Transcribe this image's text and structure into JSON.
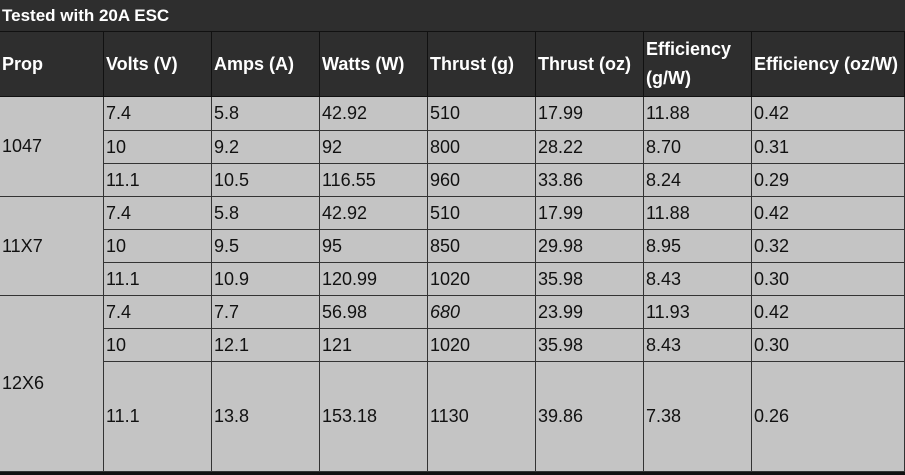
{
  "table": {
    "title": "Tested with 20A ESC",
    "headers": [
      "Prop",
      "Volts (V)",
      "Amps (A)",
      "Watts (W)",
      "Thrust (g)",
      "Thrust (oz)",
      "Efficiency (g/W)",
      "Efficiency (oz/W)"
    ],
    "groups": [
      {
        "prop": "1047",
        "rows": [
          [
            "7.4",
            "5.8",
            "42.92",
            "510",
            "17.99",
            "11.88",
            "0.42"
          ],
          [
            "10",
            "9.2",
            "92",
            "800",
            "28.22",
            "8.70",
            "0.31"
          ],
          [
            "11.1",
            "10.5",
            "116.55",
            "960",
            "33.86",
            "8.24",
            "0.29"
          ]
        ]
      },
      {
        "prop": "11X7",
        "rows": [
          [
            "7.4",
            "5.8",
            "42.92",
            "510",
            "17.99",
            "11.88",
            "0.42"
          ],
          [
            "10",
            "9.5",
            "95",
            "850",
            "29.98",
            "8.95",
            "0.32"
          ],
          [
            "11.1",
            "10.9",
            "120.99",
            "1020",
            "35.98",
            "8.43",
            "0.30"
          ]
        ]
      },
      {
        "prop": "12X6",
        "rows": [
          [
            "7.4",
            "7.7",
            "56.98",
            "680",
            "23.99",
            "11.93",
            "0.42"
          ],
          [
            "10",
            "12.1",
            "121",
            "1020",
            "35.98",
            "8.43",
            "0.30"
          ],
          [
            "11.1",
            "13.8",
            "153.18",
            "1130",
            "39.86",
            "7.38",
            "0.26"
          ]
        ]
      }
    ]
  }
}
